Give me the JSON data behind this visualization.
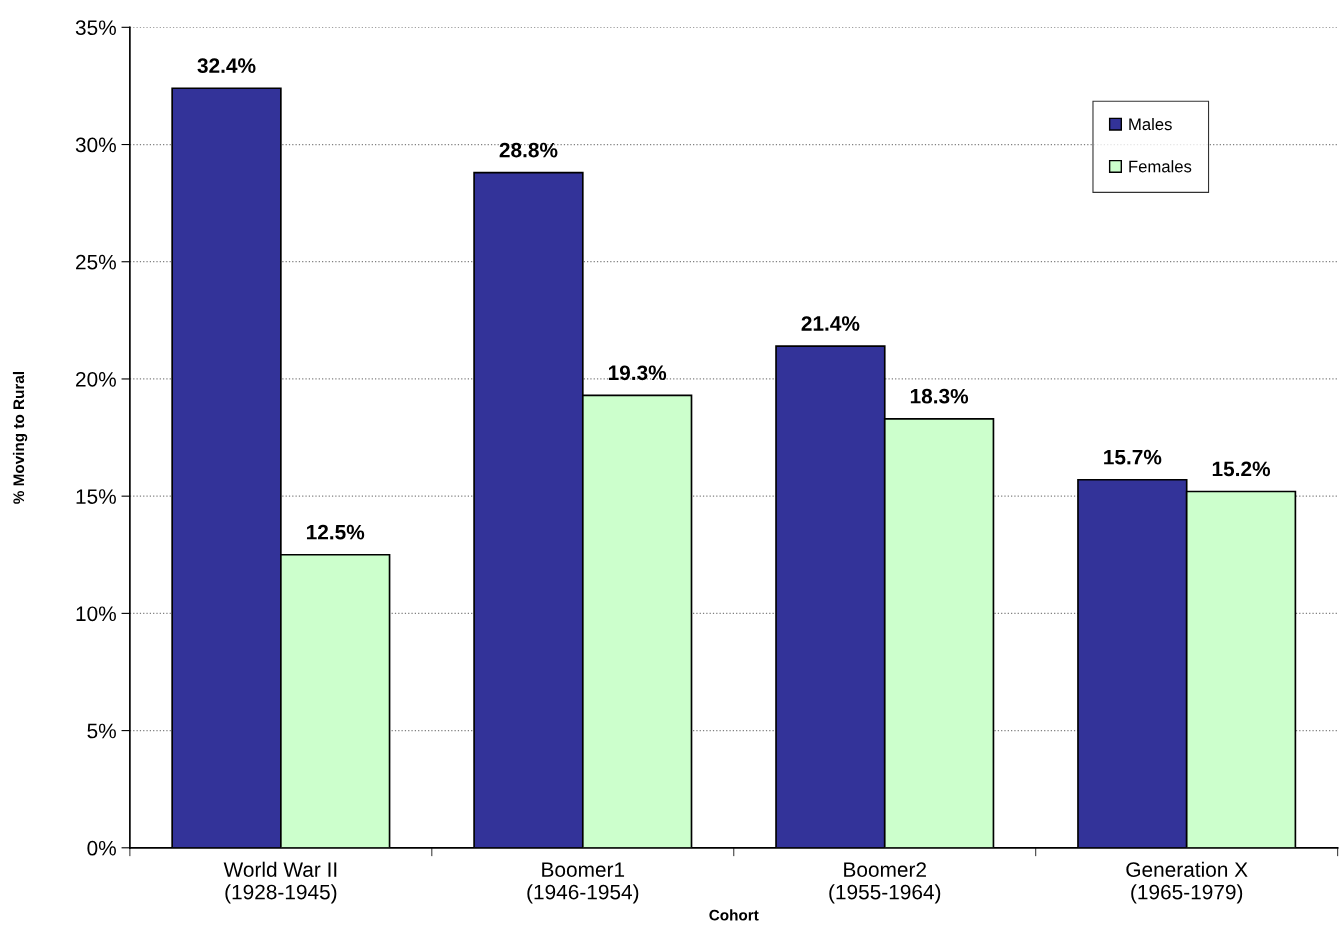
{
  "chart_data": {
    "type": "bar",
    "xlabel": "Cohort",
    "ylabel": "% Moving to Rural",
    "categories": [
      "World War II\n(1928-1945)",
      "Boomer1\n(1946-1954)",
      "Boomer2\n(1955-1964)",
      "Generation X\n(1965-1979)"
    ],
    "series": [
      {
        "name": "Males",
        "color": "#333399",
        "values": [
          32.4,
          28.8,
          21.4,
          15.7
        ],
        "value_labels": [
          "32.4%",
          "28.8%",
          "21.4%",
          "15.7%"
        ]
      },
      {
        "name": "Females",
        "color": "#ccffcc",
        "values": [
          12.5,
          19.3,
          18.3,
          15.2
        ],
        "value_labels": [
          "12.5%",
          "19.3%",
          "18.3%",
          "15.2%"
        ]
      }
    ],
    "ylim": [
      0,
      35
    ],
    "yticks": [
      {
        "value": 0,
        "label": "0%"
      },
      {
        "value": 5,
        "label": "5%"
      },
      {
        "value": 10,
        "label": "10%"
      },
      {
        "value": 15,
        "label": "15%"
      },
      {
        "value": 20,
        "label": "20%"
      },
      {
        "value": 25,
        "label": "25%"
      },
      {
        "value": 30,
        "label": "30%"
      },
      {
        "value": 35,
        "label": "35%"
      }
    ],
    "grid": "y",
    "legend": "top right"
  }
}
